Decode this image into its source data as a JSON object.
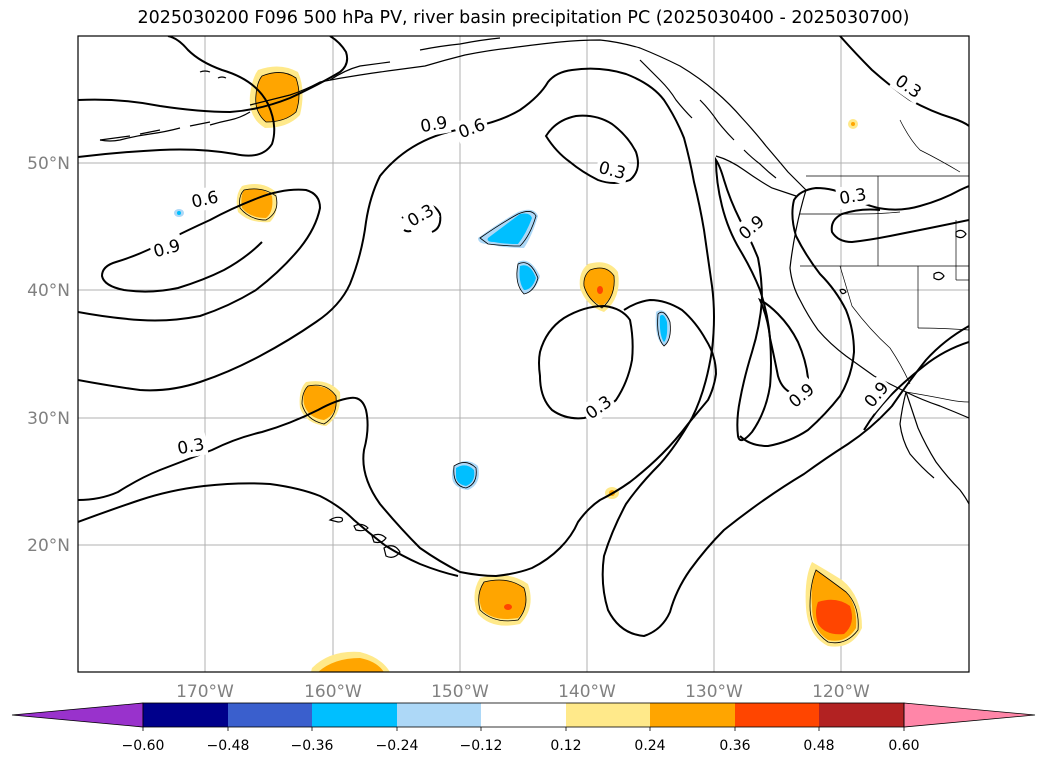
{
  "title": "2025030200 F096 500 hPa PV, river basin precipitation PC (2025030400 - 2025030700)",
  "lat_labels": [
    "50°N",
    "40°N",
    "30°N",
    "20°N"
  ],
  "lon_labels": [
    "170°W",
    "160°W",
    "150°W",
    "140°W",
    "130°W",
    "120°W"
  ],
  "contour_labels": [
    "0.3",
    "0.6",
    "0.9"
  ],
  "colorbar": {
    "ticks": [
      "−0.60",
      "−0.48",
      "−0.36",
      "−0.24",
      "−0.12",
      "0.12",
      "0.24",
      "0.36",
      "0.48",
      "0.60"
    ],
    "colors": [
      "#9932cc",
      "#00008b",
      "#3a5fcd",
      "#00bfff",
      "#add8f7",
      "#ffffff",
      "#ffe98a",
      "#ffa500",
      "#ff4500",
      "#b22222",
      "#ff86a8"
    ]
  },
  "fill_colors": {
    "light_orange": "#ffe98a",
    "orange": "#ffa500",
    "red_orange": "#ff4500",
    "light_blue": "#add8f7",
    "blue": "#00bfff"
  }
}
